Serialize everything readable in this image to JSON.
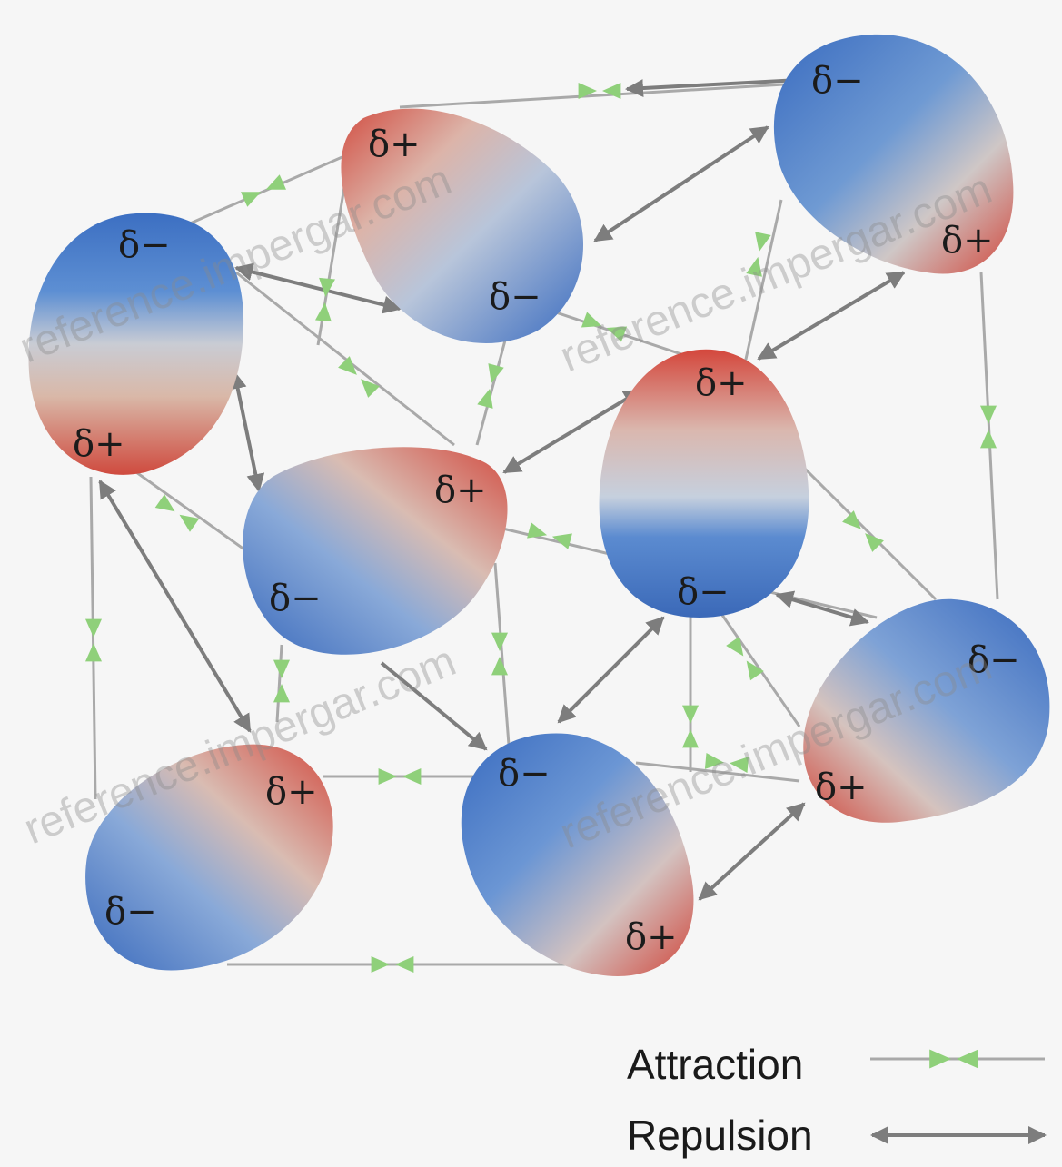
{
  "molecule_labels": {
    "delta_plus": "δ+",
    "delta_minus": "δ−"
  },
  "legend": {
    "attraction": "Attraction",
    "repulsion": "Repulsion"
  },
  "watermark": "reference.impergar.com",
  "colors": {
    "attraction_arrow": "#8fd07a",
    "repulsion_arrow": "#7d7d7d",
    "line": "#a9a9a9",
    "positive_pole": "#d9564a",
    "negative_pole": "#3f73c4",
    "neutral": "#d8d8d8"
  }
}
